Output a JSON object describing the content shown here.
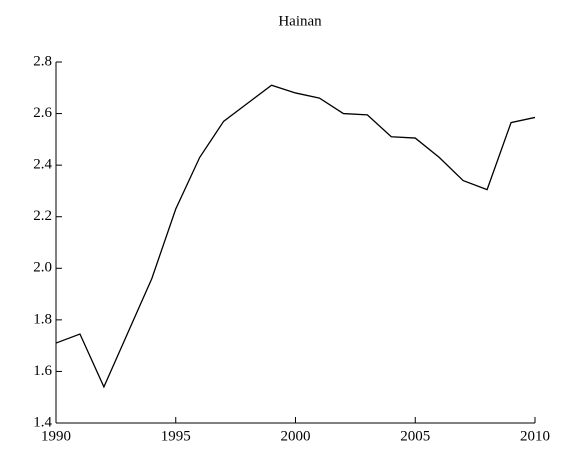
{
  "chart_data": {
    "type": "line",
    "title": "Hainan",
    "x": [
      1990,
      1991,
      1992,
      1993,
      1994,
      1995,
      1996,
      1997,
      1998,
      1999,
      2000,
      2001,
      2002,
      2003,
      2004,
      2005,
      2006,
      2007,
      2008,
      2009,
      2010
    ],
    "series": [
      {
        "name": "Hainan",
        "color": "#000000",
        "values": [
          1.71,
          1.745,
          1.54,
          1.75,
          1.96,
          2.23,
          2.43,
          2.57,
          2.64,
          2.71,
          2.68,
          2.66,
          2.6,
          2.595,
          2.51,
          2.505,
          2.43,
          2.34,
          2.305,
          2.565,
          2.585
        ]
      }
    ],
    "xlim": [
      1990,
      2010
    ],
    "xticks": [
      1990,
      1995,
      2000,
      2005,
      2010
    ],
    "ylim": [
      1.4,
      2.8
    ],
    "yticks": [
      1.4,
      1.6,
      1.8,
      {
        "value": 2,
        "label": "2.0"
      },
      2.2,
      2.4,
      2.6,
      2.8
    ],
    "grid": false
  }
}
